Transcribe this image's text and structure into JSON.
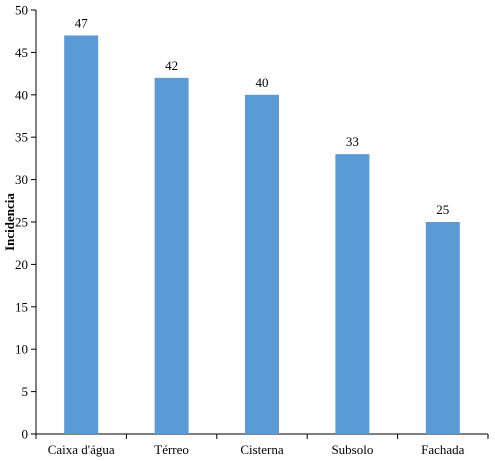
{
  "chart_data": {
    "type": "bar",
    "title": "",
    "xlabel": "",
    "ylabel": "Incidencia",
    "categories": [
      "Caixa d'água",
      "Térreo",
      "Cisterna",
      "Subsolo",
      "Fachada"
    ],
    "values": [
      47,
      42,
      40,
      33,
      25
    ],
    "data_labels": [
      "47",
      "42",
      "40",
      "33",
      "25"
    ],
    "ylim": [
      0,
      50
    ],
    "yticks": [
      0,
      5,
      10,
      15,
      20,
      25,
      30,
      35,
      40,
      45,
      50
    ],
    "ytick_labels": [
      "0",
      "5",
      "10",
      "15",
      "20",
      "25",
      "30",
      "35",
      "40",
      "45",
      "50"
    ],
    "grid": false,
    "legend": "none",
    "colors": {
      "bar": "#5b9bd5",
      "axis": "#000000",
      "text": "#000000"
    }
  }
}
